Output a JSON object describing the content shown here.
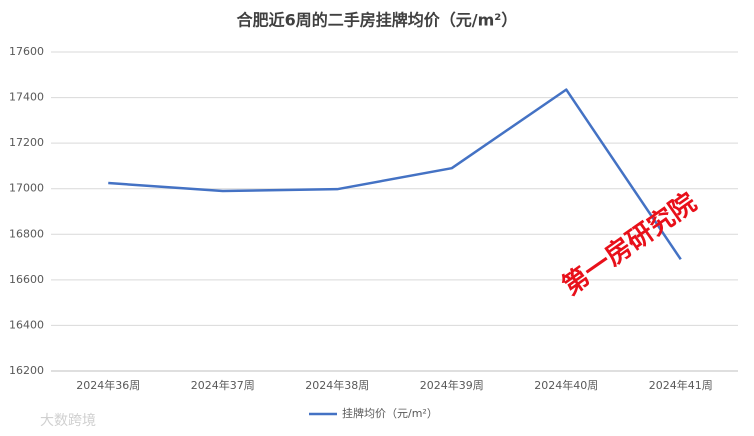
{
  "chart_data": {
    "type": "line",
    "title": "合肥近6周的二手房挂牌均价（元/m²）",
    "categories": [
      "2024年36周",
      "2024年37周",
      "2024年38周",
      "2024年39周",
      "2024年40周",
      "2024年41周"
    ],
    "series": [
      {
        "name": "挂牌均价（元/m²）",
        "color": "#4472c4",
        "values": [
          17025,
          16990,
          16998,
          17090,
          17435,
          16690
        ]
      }
    ],
    "ylim": [
      16200,
      17600
    ],
    "yticks": [
      16200,
      16400,
      16600,
      16800,
      17000,
      17200,
      17400,
      17600
    ],
    "grid": true,
    "legend": "bottom",
    "annotations": [
      "第一房研究院",
      "大数跨境"
    ]
  }
}
